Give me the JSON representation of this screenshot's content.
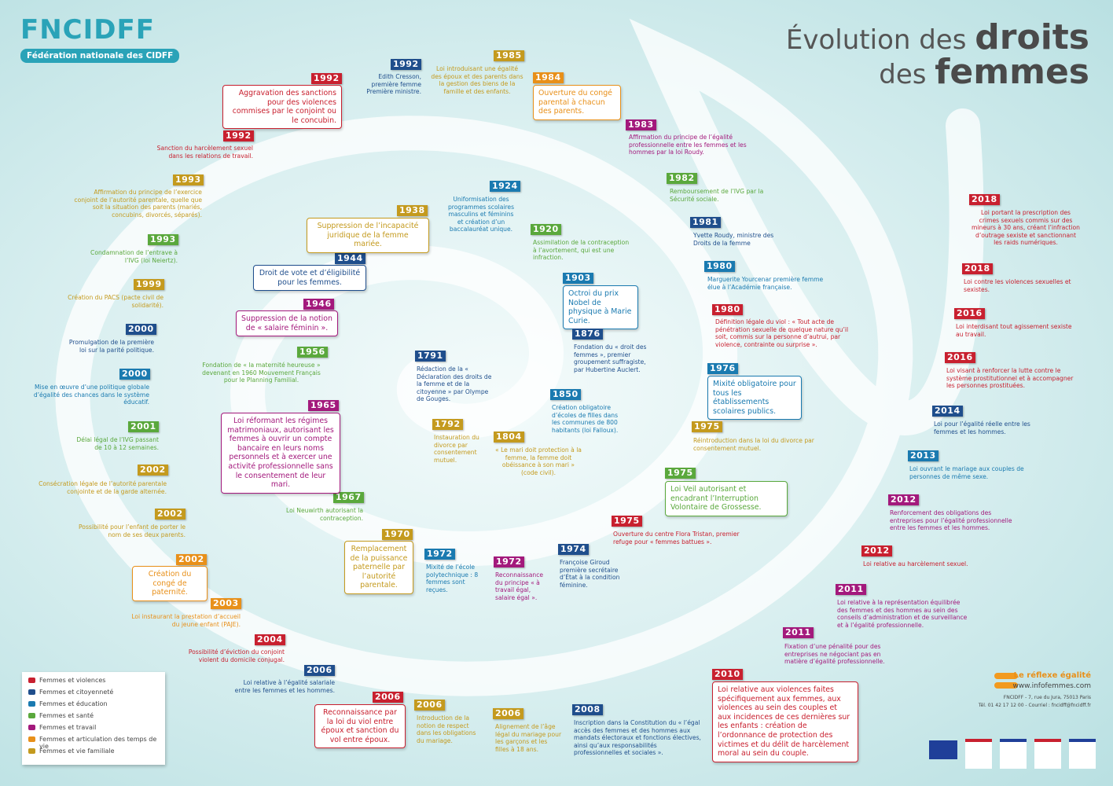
{
  "header": {
    "logo": "FNCIDFF",
    "logo_subtitle": "Fédération nationale des CIDFF",
    "title_normal_1": "Évolution des",
    "title_bold_1": "droits",
    "title_normal_2": "des",
    "title_bold_2": "femmes"
  },
  "legend": [
    {
      "name": "Femmes et violences",
      "color": "#c8202f"
    },
    {
      "name": "Femmes et citoyenneté",
      "color": "#1f4e8c"
    },
    {
      "name": "Femmes et éducation",
      "color": "#1a7ab0"
    },
    {
      "name": "Femmes et santé",
      "color": "#5aa83c"
    },
    {
      "name": "Femmes et travail",
      "color": "#a3197c"
    },
    {
      "name": "Femmes et articulation des temps de vie",
      "color": "#e8901a"
    },
    {
      "name": "Femmes et vie familiale",
      "color": "#c49a1e"
    }
  ],
  "events": [
    {
      "year": "1992",
      "color": "#c8202f",
      "text": "Aggravation des sanctions pour des violences commises par le conjoint ou le concubin."
    },
    {
      "year": "1992",
      "color": "#1f4e8c",
      "text": "Edith Cresson, première femme Première ministre."
    },
    {
      "year": "1985",
      "color": "#c49a1e",
      "text": "Loi introduisant une égalité des époux et des parents dans la gestion des biens de la famille et des enfants."
    },
    {
      "year": "1984",
      "color": "#e8901a",
      "text": "Ouverture du congé parental à chacun des parents."
    },
    {
      "year": "1983",
      "color": "#a3197c",
      "text": "Affirmation du principe de l’égalité professionnelle entre les femmes et les hommes par la loi Roudy."
    },
    {
      "year": "1982",
      "color": "#5aa83c",
      "text": "Remboursement de l’IVG par la Sécurité sociale."
    },
    {
      "year": "1981",
      "color": "#1f4e8c",
      "text": "Yvette Roudy, ministre des Droits de la femme"
    },
    {
      "year": "1980",
      "color": "#1a7ab0",
      "text": "Marguerite Yourcenar première femme élue à l’Académie française."
    },
    {
      "year": "1980",
      "color": "#c8202f",
      "text": "Définition légale du viol : « Tout acte de pénétration sexuelle de quelque nature qu’il soit, commis sur la personne d’autrui, par violence, contrainte ou surprise »."
    },
    {
      "year": "1976",
      "color": "#1a7ab0",
      "text": "Mixité obligatoire pour tous les établissements scolaires publics."
    },
    {
      "year": "1975",
      "color": "#c49a1e",
      "text": "Réintroduction dans la loi du divorce par consentement mutuel."
    },
    {
      "year": "1975",
      "color": "#5aa83c",
      "text": "Loi Veil autorisant et encadrant l’Interruption Volontaire de Grossesse."
    },
    {
      "year": "1975",
      "color": "#c8202f",
      "text": "Ouverture du centre Flora Tristan, premier refuge pour « femmes battues »."
    },
    {
      "year": "1974",
      "color": "#1f4e8c",
      "text": "Françoise Giroud première secrétaire d’État à la condition féminine."
    },
    {
      "year": "1972",
      "color": "#a3197c",
      "text": "Reconnaissance du principe « à travail égal, salaire égal »."
    },
    {
      "year": "1972",
      "color": "#1a7ab0",
      "text": "Mixité de l’école polytechnique : 8 femmes sont reçues."
    },
    {
      "year": "1970",
      "color": "#c49a1e",
      "text": "Remplacement de la puissance paternelle par l’autorité parentale."
    },
    {
      "year": "1967",
      "color": "#5aa83c",
      "text": "Loi Neuwirth autorisant la contraception."
    },
    {
      "year": "1965",
      "color": "#a3197c",
      "text": "Loi réformant les régimes matrimoniaux, autorisant les femmes à ouvrir un compte bancaire en leurs noms personnels et à exercer une activité professionnelle sans le consentement de leur mari."
    },
    {
      "year": "1956",
      "color": "#5aa83c",
      "text": "Fondation de « la maternité heureuse » devenant en 1960 Mouvement Français pour le Planning Familial."
    },
    {
      "year": "1946",
      "color": "#a3197c",
      "text": "Suppression de la notion de « salaire féminin »."
    },
    {
      "year": "1944",
      "color": "#1f4e8c",
      "text": "Droit de vote et d’éligibilité pour les femmes."
    },
    {
      "year": "1938",
      "color": "#c49a1e",
      "text": "Suppression de l’incapacité juridique de la femme mariée."
    },
    {
      "year": "1924",
      "color": "#1a7ab0",
      "text": "Uniformisation des programmes scolaires masculins et féminins et création d’un baccalauréat unique."
    },
    {
      "year": "1920",
      "color": "#5aa83c",
      "text": "Assimilation de la contraception à l’avortement, qui est une infraction."
    },
    {
      "year": "1903",
      "color": "#1a7ab0",
      "text": "Octroi du prix Nobel de physique à Marie Curie."
    },
    {
      "year": "1876",
      "color": "#1f4e8c",
      "text": "Fondation du « droit des femmes », premier groupement suffragiste, par Hubertine Auclert."
    },
    {
      "year": "1850",
      "color": "#1a7ab0",
      "text": "Création obligatoire d’écoles de filles dans les communes de 800 habitants (loi Falloux)."
    },
    {
      "year": "1804",
      "color": "#c49a1e",
      "text": "« Le mari doit protection à la femme, la femme doit obéissance à son mari » (code civil)."
    },
    {
      "year": "1792",
      "color": "#c49a1e",
      "text": "Instauration du divorce par consentement mutuel."
    },
    {
      "year": "1791",
      "color": "#1f4e8c",
      "text": "Rédaction de la « Déclaration des droits de la femme et de la citoyenne » par Olympe de Gouges."
    },
    {
      "year": "1992",
      "color": "#c8202f",
      "text": "Sanction du harcèlement sexuel dans les relations de travail."
    },
    {
      "year": "1993",
      "color": "#c49a1e",
      "text": "Affirmation du principe de l’exercice conjoint de l’autorité parentale, quelle que soit la situation des parents (mariés, concubins, divorcés, séparés)."
    },
    {
      "year": "1993",
      "color": "#5aa83c",
      "text": "Condamnation de l’entrave à l’IVG (loi Neiertz)."
    },
    {
      "year": "1999",
      "color": "#c49a1e",
      "text": "Création du PACS (pacte civil de solidarité)."
    },
    {
      "year": "2000",
      "color": "#1f4e8c",
      "text": "Promulgation de la première loi sur la parité politique."
    },
    {
      "year": "2000",
      "color": "#1a7ab0",
      "text": "Mise en œuvre d’une politique globale d’égalité des chances dans le système éducatif."
    },
    {
      "year": "2001",
      "color": "#5aa83c",
      "text": "Délai légal de l’IVG passant de 10 à 12 semaines."
    },
    {
      "year": "2002",
      "color": "#c49a1e",
      "text": "Consécration légale de l’autorité parentale conjointe et de la garde alternée."
    },
    {
      "year": "2002",
      "color": "#c49a1e",
      "text": "Possibilité pour l’enfant de porter le nom de ses deux parents."
    },
    {
      "year": "2002",
      "color": "#e8901a",
      "text": "Création du congé de paternité."
    },
    {
      "year": "2003",
      "color": "#e8901a",
      "text": "Loi instaurant la prestation d’accueil du jeune enfant (PAJE)."
    },
    {
      "year": "2004",
      "color": "#c8202f",
      "text": "Possibilité d’éviction du conjoint violent du domicile conjugal."
    },
    {
      "year": "2006",
      "color": "#1f4e8c",
      "text": "Loi relative à l’égalité salariale entre les femmes et les hommes."
    },
    {
      "year": "2006",
      "color": "#c8202f",
      "text": "Reconnaissance par la loi du viol entre époux et sanction du vol entre époux."
    },
    {
      "year": "2006",
      "color": "#c49a1e",
      "text": "Introduction de la notion de respect dans les obligations du mariage."
    },
    {
      "year": "2006",
      "color": "#c49a1e",
      "text": "Alignement de l’âge légal du mariage pour les garçons et les filles à 18 ans."
    },
    {
      "year": "2008",
      "color": "#1f4e8c",
      "text": "Inscription dans la Constitution du « l’égal accès des femmes et des hommes aux mandats électoraux et fonctions électives, ainsi qu’aux responsabilités professionnelles et sociales »."
    },
    {
      "year": "2010",
      "color": "#c8202f",
      "text": "Loi relative aux violences faites spécifiquement aux femmes, aux violences au sein des couples et aux incidences de ces dernières sur les enfants : création de l’ordonnance de protection des victimes et du délit de harcèlement moral au sein du couple."
    },
    {
      "year": "2011",
      "color": "#a3197c",
      "text": "Fixation d’une pénalité pour des entreprises ne négociant pas en matière d’égalité professionnelle."
    },
    {
      "year": "2011",
      "color": "#a3197c",
      "text": "Loi relative à la représentation équilibrée des femmes et des hommes au sein des conseils d’administration et de surveillance et à l’égalité professionnelle."
    },
    {
      "year": "2012",
      "color": "#c8202f",
      "text": "Loi relative au harcèlement sexuel."
    },
    {
      "year": "2012",
      "color": "#a3197c",
      "text": "Renforcement des obligations des entreprises pour l’égalité professionnelle entre les femmes et les hommes."
    },
    {
      "year": "2013",
      "color": "#1a7ab0",
      "text": "Loi ouvrant le mariage aux couples de personnes de même sexe."
    },
    {
      "year": "2014",
      "color": "#1f4e8c",
      "text": "Loi pour l’égalité réelle entre les femmes et les hommes."
    },
    {
      "year": "2016",
      "color": "#c8202f",
      "text": "Loi visant à renforcer la lutte contre le système prostitutionnel et à accompagner les personnes prostituées."
    },
    {
      "year": "2016",
      "color": "#c8202f",
      "text": "Loi interdisant tout agissement sexiste au travail."
    },
    {
      "year": "2018",
      "color": "#c8202f",
      "text": "Loi contre les violences sexuelles et sexistes."
    },
    {
      "year": "2018",
      "color": "#c8202f",
      "text": "Loi portant la prescription des crimes sexuels commis sur des mineurs à 30 ans, créant l’infraction d’outrage sexiste et sanctionnant les raids numériques."
    }
  ],
  "footer": {
    "slogan": "Le réflexe égalité",
    "website": "www.infofemmes.com",
    "address": "FNCIDFF - 7, rue du Jura, 75013 Paris",
    "contact": "Tél. 01 42 17 12 00 - Courriel : fncidff@fncidff.fr"
  }
}
